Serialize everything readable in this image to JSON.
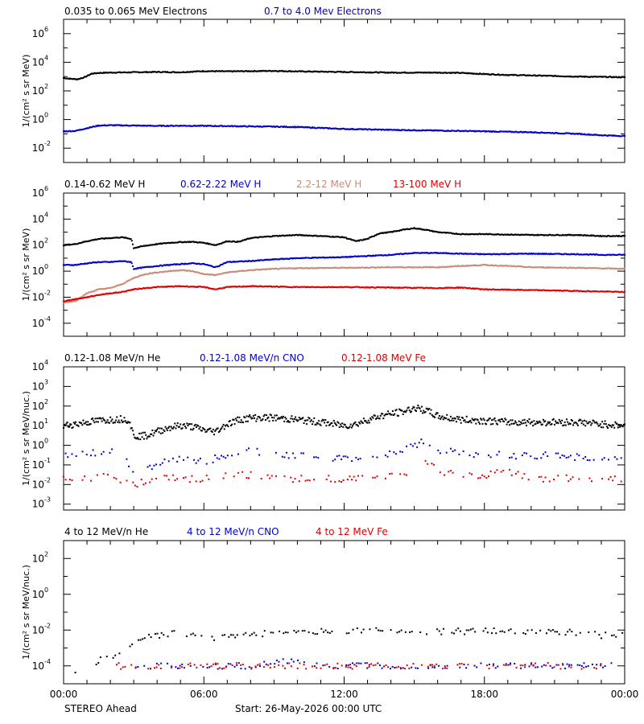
{
  "colors": {
    "black": "#000000",
    "blue": "#0000cc",
    "tan": "#c88c78",
    "red": "#dd0000"
  },
  "footer": {
    "left": "STEREO Ahead",
    "center": "Start: 26-May-2026 00:00 UTC"
  },
  "x_ticks": [
    "00:00",
    "06:00",
    "12:00",
    "18:00",
    "00:00"
  ],
  "chart_data": [
    {
      "type": "scatter",
      "ylabel": "1/(cm² s sr MeV)",
      "yscale": "log",
      "ylim_exp": [
        -3,
        7
      ],
      "yticks_exp": [
        -2,
        0,
        2,
        4,
        6
      ],
      "xlim_hours": [
        0,
        24
      ],
      "series": [
        {
          "name": "0.035 to 0.065 MeV Electrons",
          "color": "#000000",
          "x": [
            0,
            0.3,
            0.6,
            0.9,
            1.2,
            1.5,
            2,
            3,
            4,
            5,
            5.5,
            6,
            7,
            8,
            9,
            10,
            12,
            14,
            16,
            17,
            18,
            19,
            20,
            21,
            22,
            23,
            24
          ],
          "y": [
            800,
            700,
            650,
            900,
            1600,
            1800,
            1900,
            2000,
            2100,
            2000,
            2200,
            2400,
            2300,
            2400,
            2500,
            2300,
            2100,
            1900,
            1900,
            1800,
            1500,
            1300,
            1200,
            1100,
            1000,
            950,
            900
          ]
        },
        {
          "name": "0.7 to 4.0 Mev Electrons",
          "color": "#0000cc",
          "x": [
            0,
            0.5,
            1,
            1.5,
            2,
            3,
            4,
            5,
            6,
            7,
            8,
            9,
            10,
            12,
            14,
            16,
            18,
            20,
            22,
            23,
            24
          ],
          "y": [
            0.15,
            0.16,
            0.25,
            0.38,
            0.4,
            0.38,
            0.36,
            0.37,
            0.36,
            0.35,
            0.33,
            0.32,
            0.3,
            0.22,
            0.19,
            0.17,
            0.15,
            0.13,
            0.1,
            0.08,
            0.07
          ]
        }
      ]
    },
    {
      "type": "scatter",
      "ylabel": "1/(cm² s sr MeV)",
      "yscale": "log",
      "ylim_exp": [
        -5,
        6
      ],
      "yticks_exp": [
        -4,
        -2,
        0,
        2,
        4,
        6
      ],
      "xlim_hours": [
        0,
        24
      ],
      "series": [
        {
          "name": "0.14-0.62 MeV H",
          "color": "#000000",
          "x": [
            0,
            0.5,
            1,
            1.5,
            2,
            2.5,
            2.9,
            3,
            3.5,
            4,
            4.5,
            5,
            5.5,
            6,
            6.5,
            7,
            7.5,
            8,
            9,
            10,
            11,
            12,
            12.5,
            13,
            13.5,
            14,
            14.5,
            15,
            15.5,
            16,
            17,
            18,
            19,
            20,
            21,
            22,
            23,
            24
          ],
          "y": [
            100,
            120,
            200,
            300,
            350,
            400,
            300,
            60,
            90,
            120,
            150,
            170,
            180,
            150,
            100,
            200,
            180,
            350,
            500,
            600,
            500,
            400,
            200,
            300,
            800,
            1000,
            1500,
            2000,
            1500,
            1000,
            700,
            700,
            650,
            600,
            600,
            600,
            500,
            500
          ]
        },
        {
          "name": "0.62-2.22 MeV H",
          "color": "#0000cc",
          "x": [
            0,
            0.5,
            1,
            1.5,
            2,
            2.5,
            2.9,
            3,
            3.5,
            4,
            4.5,
            5,
            5.5,
            6,
            6.5,
            7,
            8,
            9,
            10,
            12,
            14,
            15,
            16,
            17,
            18,
            20,
            22,
            23,
            24
          ],
          "y": [
            3,
            3,
            4,
            5,
            5,
            6,
            5,
            1.5,
            2,
            2.5,
            3,
            3.5,
            4,
            3.5,
            2,
            5,
            6,
            8,
            10,
            12,
            18,
            25,
            25,
            22,
            20,
            22,
            20,
            18,
            18
          ]
        },
        {
          "name": "2.2-12 MeV H",
          "color": "#c88c78",
          "x": [
            0,
            0.5,
            1,
            1.5,
            2,
            2.5,
            3,
            3.5,
            4,
            4.5,
            5,
            5.5,
            6,
            6.5,
            7,
            8,
            9,
            10,
            12,
            14,
            15,
            16,
            17,
            18,
            19,
            20,
            22,
            24
          ],
          "y": [
            0.004,
            0.005,
            0.02,
            0.04,
            0.05,
            0.1,
            0.3,
            0.6,
            0.8,
            1.0,
            1.2,
            1.0,
            0.6,
            0.5,
            0.8,
            1.2,
            1.5,
            1.7,
            1.8,
            2.0,
            2.0,
            2.0,
            2.5,
            3.0,
            2.5,
            2.0,
            1.8,
            1.5
          ]
        },
        {
          "name": "13-100 MeV H",
          "color": "#dd0000",
          "x": [
            0,
            0.5,
            1,
            1.5,
            2,
            2.5,
            3,
            3.5,
            4,
            5,
            6,
            6.5,
            7,
            8,
            9,
            10,
            12,
            14,
            16,
            17,
            18,
            20,
            22,
            24
          ],
          "y": [
            0.005,
            0.007,
            0.01,
            0.015,
            0.02,
            0.025,
            0.04,
            0.05,
            0.06,
            0.07,
            0.06,
            0.04,
            0.06,
            0.07,
            0.065,
            0.06,
            0.06,
            0.055,
            0.05,
            0.055,
            0.04,
            0.035,
            0.03,
            0.025
          ]
        }
      ]
    },
    {
      "type": "scatter",
      "ylabel": "1/(cm² s sr MeV/nuc.)",
      "yscale": "log",
      "ylim_exp": [
        -3.3,
        4
      ],
      "yticks_exp": [
        -3,
        -2,
        -1,
        0,
        1,
        2,
        3,
        4
      ],
      "xlim_hours": [
        0,
        24
      ],
      "series": [
        {
          "name": "0.12-1.08 MeV/n He",
          "color": "#000000",
          "x": [
            0,
            0.5,
            1,
            1.5,
            2,
            2.5,
            2.8,
            3,
            3.5,
            4,
            4.5,
            5,
            5.5,
            6,
            6.5,
            7,
            7.5,
            8,
            9,
            10,
            11,
            12,
            12.5,
            13,
            13.5,
            14,
            14.5,
            15,
            15.5,
            16,
            17,
            18,
            19,
            20,
            21,
            22,
            23,
            24
          ],
          "y": [
            10,
            12,
            15,
            18,
            20,
            22,
            20,
            3,
            3,
            5,
            8,
            10,
            9,
            6,
            5,
            12,
            20,
            25,
            25,
            20,
            15,
            10,
            12,
            20,
            30,
            40,
            50,
            80,
            60,
            30,
            20,
            18,
            15,
            15,
            15,
            15,
            12,
            10
          ]
        },
        {
          "name": "0.12-1.08 MeV/n CNO",
          "color": "#0000cc",
          "x": [
            0,
            0.5,
            1,
            1.5,
            2,
            2.5,
            3,
            3.5,
            4,
            4.5,
            5,
            6,
            7,
            7.5,
            8,
            9,
            10,
            11,
            12,
            13,
            14,
            15,
            15.5,
            16,
            17,
            18,
            19,
            20,
            21,
            22,
            23,
            24
          ],
          "y": [
            0.3,
            0.35,
            0.4,
            0.45,
            0.5,
            0.4,
            0.05,
            0.08,
            0.1,
            0.15,
            0.2,
            0.15,
            0.3,
            0.4,
            0.5,
            0.35,
            0.3,
            0.25,
            0.2,
            0.25,
            0.35,
            1.0,
            2.0,
            0.6,
            0.4,
            0.35,
            0.3,
            0.3,
            0.3,
            0.25,
            0.25,
            0.2
          ]
        },
        {
          "name": "0.12-1.08 MeV Fe",
          "color": "#dd0000",
          "x": [
            0,
            1,
            2,
            3,
            4,
            5,
            6,
            7,
            8,
            9,
            10,
            11,
            12,
            13,
            14,
            15,
            15.5,
            16,
            17,
            18,
            19,
            20,
            21,
            22,
            23,
            24
          ],
          "y": [
            0.02,
            0.02,
            0.03,
            0.01,
            0.02,
            0.02,
            0.02,
            0.03,
            0.03,
            0.02,
            0.02,
            0.02,
            0.02,
            0.02,
            0.03,
            0.05,
            0.15,
            0.05,
            0.03,
            0.03,
            0.05,
            0.02,
            0.02,
            0.02,
            0.02,
            0.02
          ]
        }
      ]
    },
    {
      "type": "scatter",
      "ylabel": "1/(cm² s sr MeV/nuc.)",
      "yscale": "log",
      "ylim_exp": [
        -5,
        3
      ],
      "yticks_exp": [
        -4,
        -2,
        0,
        2
      ],
      "xlim_hours": [
        0,
        24
      ],
      "series": [
        {
          "name": "4 to 12 MeV/n He",
          "color": "#000000",
          "x": [
            0.5,
            1,
            1.5,
            2,
            2.5,
            3,
            3.5,
            4,
            4.5,
            5,
            5.5,
            6,
            6.5,
            7,
            8,
            9,
            10,
            12,
            14,
            16,
            18,
            20,
            22,
            23,
            24
          ],
          "y": [
            5e-05,
            0.0001,
            0.0002,
            0.0003,
            0.0008,
            0.002,
            0.004,
            0.005,
            0.006,
            0.007,
            0.006,
            0.004,
            0.003,
            0.005,
            0.006,
            0.007,
            0.008,
            0.009,
            0.009,
            0.008,
            0.009,
            0.008,
            0.007,
            0.005,
            0.005
          ]
        },
        {
          "name": "4 to 12 MeV/n CNO",
          "color": "#0000cc",
          "x": [
            3,
            4,
            5,
            8,
            9.5,
            11,
            13,
            14.5,
            16,
            17.5,
            19,
            21,
            22.5,
            23.5
          ],
          "y": [
            0.0001,
            0.0001,
            0.0001,
            0.0001,
            0.0002,
            0.0001,
            0.0001,
            0.0001,
            0.0001,
            0.0001,
            0.0001,
            0.0001,
            0.0001,
            0.0001
          ]
        },
        {
          "name": "4 to 12 MeV Fe",
          "color": "#dd0000",
          "x": [
            2,
            4.5,
            6,
            7.5,
            9,
            10.5,
            12,
            16.5,
            19,
            23
          ],
          "y": [
            0.0001,
            0.0001,
            0.0001,
            0.0001,
            0.0001,
            0.0001,
            0.0001,
            0.0001,
            0.0001,
            0.0001
          ]
        }
      ]
    }
  ]
}
